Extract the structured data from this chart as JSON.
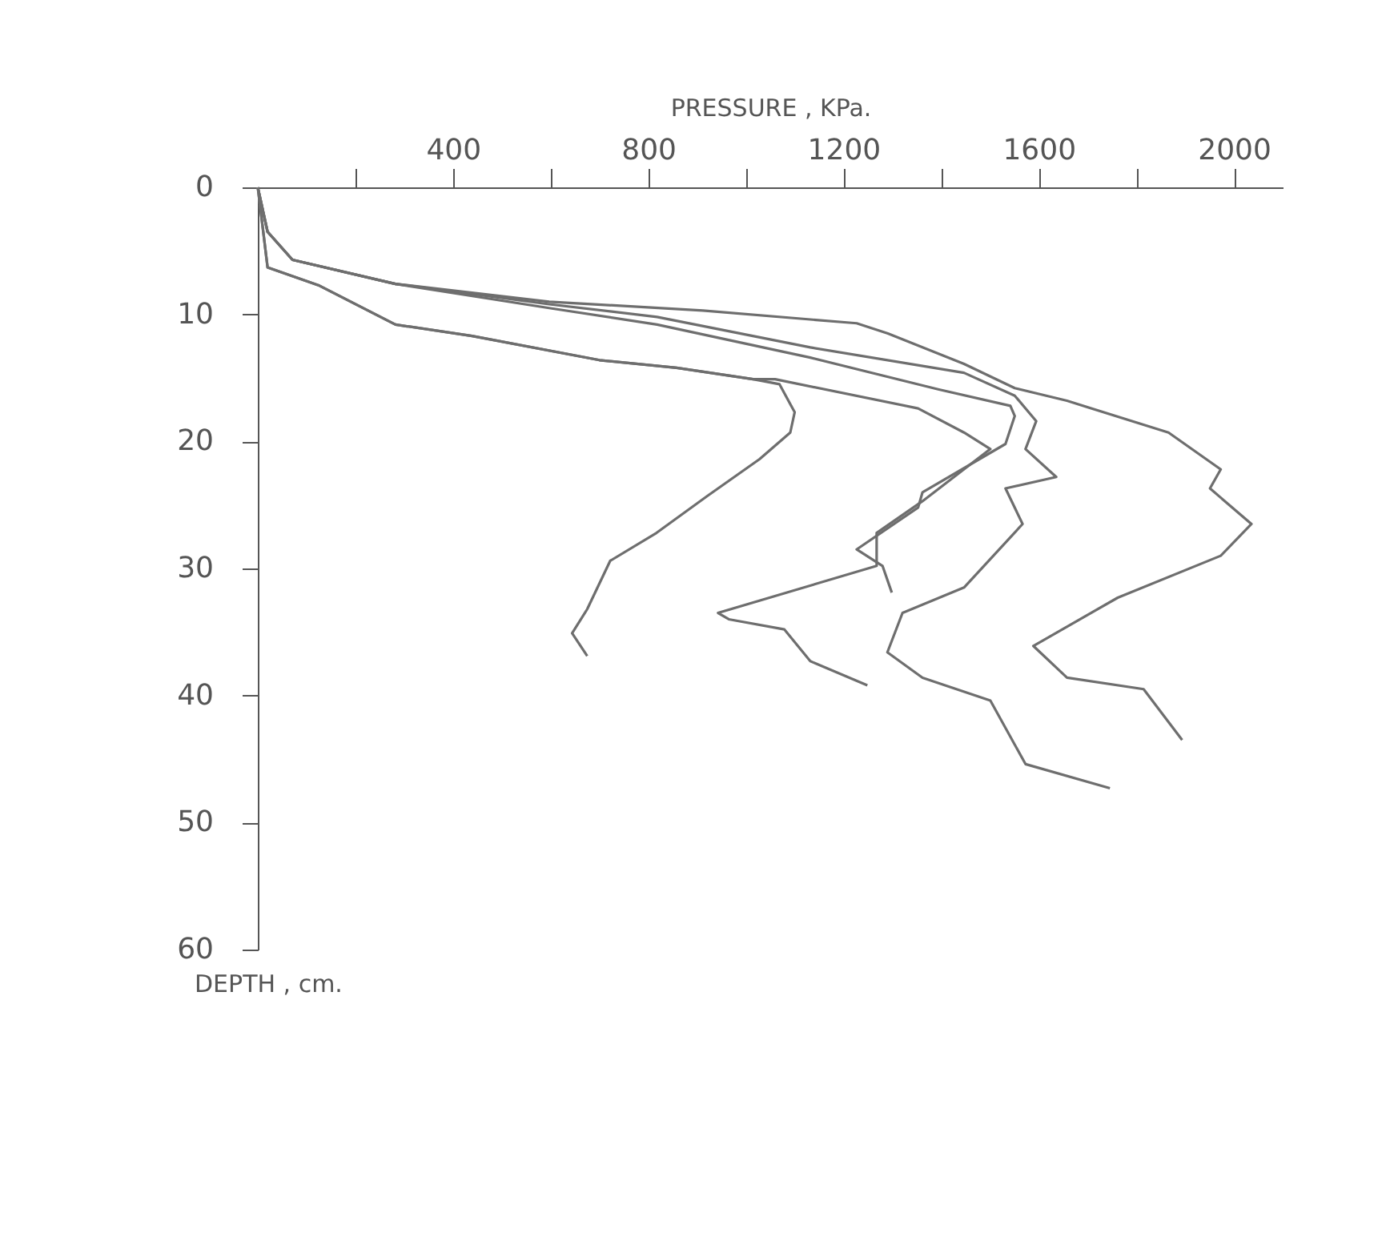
{
  "chart_data": {
    "type": "line",
    "xlabel": "PRESSURE , KPa.",
    "ylabel": "DEPTH , cm.",
    "xlim": [
      0,
      2100
    ],
    "ylim": [
      60,
      0
    ],
    "xticks": [
      {
        "value": 200,
        "label": null
      },
      400,
      {
        "value": 600,
        "label": null
      },
      800,
      {
        "value": 1000,
        "label": null
      },
      1200,
      {
        "value": 1400,
        "label": null
      },
      1600,
      {
        "value": 1800,
        "label": null
      },
      2000
    ],
    "yticks": [
      0,
      10,
      20,
      30,
      40,
      50,
      60
    ],
    "grid": false,
    "legend": false,
    "marker": "none",
    "line_style": "solid",
    "series": [
      {
        "color": "#6e6e6e",
        "x": [
          0,
          20,
          124,
          282,
          439,
          700,
          858,
          1015,
          1069,
          1100,
          1091,
          1028,
          921,
          817,
          722,
          675,
          644,
          675
        ],
        "values": [
          0,
          6.3,
          7.7,
          10.8,
          11.7,
          13.6,
          14.2,
          15.1,
          15.5,
          17.7,
          19.3,
          21.4,
          24.3,
          27.2,
          29.4,
          33.2,
          35.1,
          36.9
        ]
      },
      {
        "color": "#6e6e6e",
        "x": [
          0,
          20,
          124,
          282,
          439,
          700,
          858,
          1015,
          1060,
          1353,
          1447,
          1501,
          1362,
          1268,
          1268,
          943,
          965,
          1079,
          1132,
          1249
        ],
        "values": [
          0,
          6.3,
          7.7,
          10.8,
          11.7,
          13.6,
          14.2,
          15.1,
          15.1,
          17.4,
          19.3,
          20.6,
          24.7,
          27.2,
          29.8,
          33.5,
          34.0,
          34.8,
          37.3,
          39.2
        ]
      },
      {
        "color": "#6e6e6e",
        "x": [
          0,
          20,
          71,
          282,
          597,
          818,
          1132,
          1447,
          1551,
          1595,
          1573,
          1636,
          1532,
          1567,
          1447,
          1321,
          1290,
          1362,
          1501,
          1573,
          1746
        ],
        "values": [
          0,
          3.5,
          5.7,
          7.6,
          9.2,
          10.2,
          12.6,
          14.6,
          16.4,
          18.4,
          20.6,
          22.8,
          23.7,
          26.5,
          31.5,
          33.5,
          36.6,
          38.6,
          40.4,
          45.4,
          47.3
        ]
      },
      {
        "color": "#6e6e6e",
        "x": [
          0,
          20,
          71,
          282,
          597,
          912,
          1227,
          1291,
          1447,
          1551,
          1658,
          1866,
          1973,
          1951,
          2036,
          1973,
          1762,
          1589,
          1658,
          1815,
          1894
        ],
        "values": [
          0,
          3.5,
          5.7,
          7.6,
          9.0,
          9.7,
          10.7,
          11.5,
          13.9,
          15.8,
          16.8,
          19.3,
          22.2,
          23.7,
          26.5,
          29.0,
          32.3,
          36.1,
          38.6,
          39.5,
          43.5
        ]
      },
      {
        "color": "#6e6e6e",
        "x": [
          0,
          20,
          71,
          282,
          597,
          818,
          1132,
          1394,
          1542,
          1551,
          1532,
          1362,
          1353,
          1227,
          1280,
          1299
        ],
        "values": [
          0,
          3.5,
          5.7,
          7.6,
          9.5,
          10.8,
          13.4,
          15.9,
          17.2,
          18.0,
          20.2,
          24.0,
          25.2,
          28.5,
          29.8,
          31.9
        ]
      }
    ]
  }
}
